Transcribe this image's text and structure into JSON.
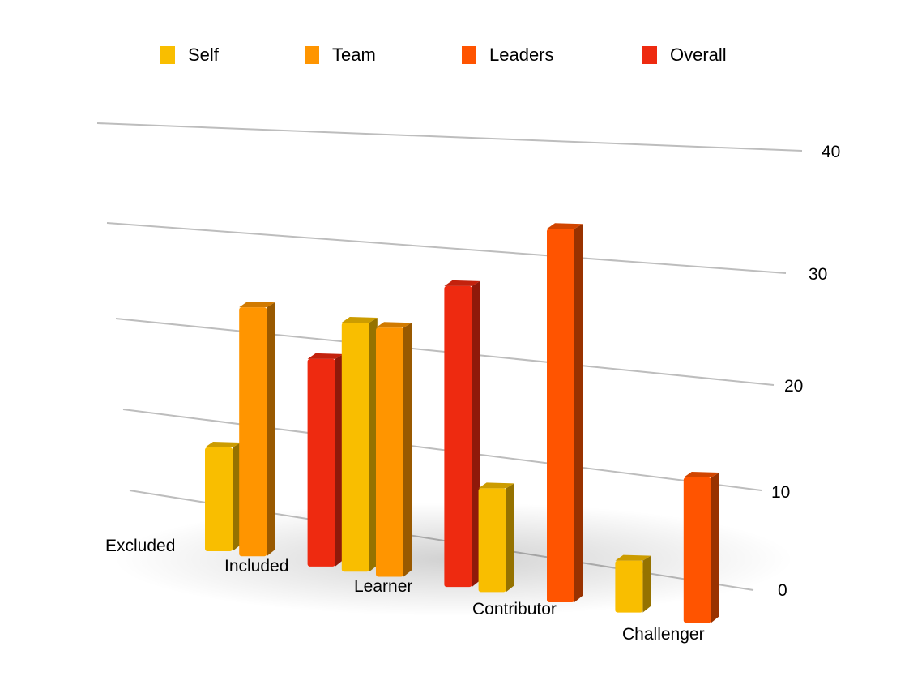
{
  "chart_data": {
    "type": "bar",
    "style": "3d-perspective",
    "title": "",
    "xlabel": "",
    "ylabel": "",
    "categories": [
      "Excluded",
      "Included",
      "Learner",
      "Contributor",
      "Challenger"
    ],
    "series": [
      {
        "name": "Self",
        "color": "#F9BE00",
        "values": [
          10,
          24,
          10,
          5,
          0
        ]
      },
      {
        "name": "Team",
        "color": "#FF9500",
        "values": [
          24,
          24,
          0,
          0,
          0
        ]
      },
      {
        "name": "Leaders",
        "color": "#FF5400",
        "values": [
          0,
          0,
          36,
          14,
          0
        ]
      },
      {
        "name": "Overall",
        "color": "#EE2A10",
        "values": [
          20,
          29,
          0,
          0,
          0
        ]
      }
    ],
    "yticks": [
      "0",
      "10",
      "20",
      "30",
      "40"
    ],
    "ylim": [
      0,
      40
    ],
    "grid": true,
    "legend_position": "top"
  }
}
